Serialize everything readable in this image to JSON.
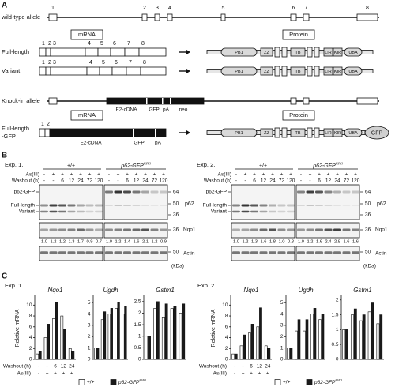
{
  "panel_a": {
    "label": "A",
    "wild_type": {
      "label": "wild-type allele",
      "exons": [
        1,
        2,
        3,
        4,
        5,
        6,
        7,
        8
      ]
    },
    "mrna_header": "mRNA",
    "protein_header": "Protein",
    "full_length": {
      "label": "Full-length",
      "exons": [
        1,
        2,
        3,
        4,
        5,
        6,
        7,
        8
      ],
      "domains": [
        "PB1",
        "ZZ",
        "TB",
        "LIR",
        "KIR",
        "UBA"
      ]
    },
    "variant": {
      "label": "Variant",
      "exons": [
        1,
        2,
        3,
        4,
        5,
        6,
        7,
        8
      ],
      "domains": [
        "PB1",
        "ZZ",
        "TB",
        "LIR",
        "KIR",
        "UBA"
      ]
    },
    "knock_in": {
      "label": "Knock-in allele",
      "parts": [
        "E2-cDNA",
        "GFP",
        "pA",
        "neo"
      ]
    },
    "mrna_header_2": "mRNA",
    "protein_header_2": "Protein",
    "full_length_gfp": {
      "label": [
        "Full-length",
        "-GFP"
      ],
      "exons": [
        1,
        2
      ],
      "parts": [
        "E2-cDNA",
        "GFP",
        "pA"
      ],
      "domains": [
        "PB1",
        "ZZ",
        "TB",
        "LIR",
        "KIR",
        "UBA",
        "GFP"
      ]
    }
  },
  "panel_b": {
    "label": "B",
    "experiments": [
      {
        "label": "Exp. 1.",
        "genotype_wt": "+/+",
        "genotype_ki": "p62-GFP",
        "genotype_ki_sup": "KI/KI",
        "as_label": "As(III)",
        "washout_label": "Washout (h)",
        "lanes": [
          {
            "as": [
              "-",
              "+",
              "+",
              "+",
              "+",
              "+",
              "+"
            ],
            "washout": [
              "-",
              "-",
              "6",
              "12",
              "24",
              "72",
              "120"
            ]
          },
          {
            "as": [
              "-",
              "+",
              "+",
              "+",
              "+",
              "+",
              "+"
            ],
            "washout": [
              "-",
              "-",
              "6",
              "12",
              "24",
              "72",
              "120"
            ]
          }
        ],
        "band_labels": [
          "p62-GFP",
          "Full-length",
          "Variant"
        ],
        "p62_markers": [
          64,
          50,
          36
        ],
        "p62_label": "p62",
        "nqo1_marker": 36,
        "nqo1_label": "Nqo1",
        "nqo1_ratio": [
          [
            "1.0",
            "1.2",
            "1.2",
            "1.3",
            "1.7",
            "0.9",
            "0.7"
          ],
          [
            "1.0",
            "1.2",
            "1.4",
            "1.6",
            "2.1",
            "1.2",
            "0.9"
          ]
        ],
        "actin_marker": 50,
        "actin_label": "Actin",
        "kda": "(kDa)"
      },
      {
        "label": "Exp. 2.",
        "genotype_wt": "+/+",
        "genotype_ki": "p62-GFP",
        "genotype_ki_sup": "KI/KI",
        "as_label": "As(III)",
        "washout_label": "Washout (h)",
        "lanes": [
          {
            "as": [
              "-",
              "+",
              "+",
              "+",
              "+",
              "+",
              "+"
            ],
            "washout": [
              "-",
              "-",
              "6",
              "12",
              "24",
              "72",
              "120"
            ]
          },
          {
            "as": [
              "-",
              "+",
              "+",
              "+",
              "+",
              "+",
              "+"
            ],
            "washout": [
              "-",
              "-",
              "6",
              "12",
              "24",
              "72",
              "120"
            ]
          }
        ],
        "band_labels": [
          "p62-GFP",
          "Full-length",
          "Variant"
        ],
        "p62_markers": [
          64,
          50,
          36
        ],
        "p62_label": "p62",
        "nqo1_marker": 36,
        "nqo1_label": "Nqo1",
        "nqo1_ratio": [
          [
            "1.0",
            "1.2",
            "1.3",
            "1.6",
            "1.8",
            "1.0",
            "0.8"
          ],
          [
            "1.0",
            "1.2",
            "1.6",
            "2.4",
            "2.8",
            "1.6",
            "1.6"
          ]
        ],
        "actin_marker": 50,
        "actin_label": "Actin",
        "kda": "(kDa)"
      }
    ]
  },
  "panel_c": {
    "label": "C",
    "experiments": [
      {
        "label": "Exp. 1.",
        "washout_label": "Washout (h)",
        "as_label": "As(III)",
        "as": [
          "-",
          "+",
          "+",
          "+",
          "+"
        ]
      },
      {
        "label": "Exp. 2.",
        "washout_label": "Washout (h)",
        "as_label": "As(III)",
        "as": [
          "-",
          "+",
          "+",
          "+",
          "+"
        ]
      }
    ]
  },
  "chart_data": [
    {
      "type": "bar",
      "title": "Nqo1",
      "ylabel": "Relative mRNA",
      "categories": [
        "-",
        "-",
        "6",
        "12",
        "24"
      ],
      "series": [
        {
          "name": "+/+",
          "color": "#ffffff",
          "values": [
            1,
            4,
            7.5,
            8,
            2
          ]
        },
        {
          "name": "p62-GFP",
          "name_sup": "KI/KI",
          "color": "#1a1a1a",
          "values": [
            1.5,
            6.5,
            10.5,
            5.5,
            1.5
          ]
        }
      ],
      "ylim": [
        0,
        11.5
      ],
      "yticks": [
        0,
        2,
        4,
        6,
        8,
        10
      ]
    },
    {
      "type": "bar",
      "title": "Ugdh",
      "categories": [
        null,
        null,
        null,
        null,
        null
      ],
      "series": [
        {
          "color": "#ffffff",
          "values": [
            1,
            3.5,
            4,
            4.5,
            4
          ]
        },
        {
          "color": "#1a1a1a",
          "values": [
            1,
            4.2,
            4.5,
            5,
            4.7
          ]
        }
      ],
      "ylim": [
        0,
        5.5
      ],
      "yticks": [
        0,
        1,
        2,
        3,
        4,
        5
      ]
    },
    {
      "type": "bar",
      "title": "Gstm1",
      "categories": [
        null,
        null,
        null,
        null,
        null
      ],
      "series": [
        {
          "color": "#ffffff",
          "values": [
            1,
            2.2,
            1.8,
            2.2,
            2
          ]
        },
        {
          "color": "#1a1a1a",
          "values": [
            1,
            2.5,
            2.4,
            2.3,
            2.4
          ]
        }
      ],
      "ylim": [
        0,
        2.7
      ],
      "yticks": [
        0,
        0.5,
        1,
        1.5,
        2,
        2.5
      ]
    },
    {
      "type": "bar",
      "title": "Nqo1",
      "ylabel": "Relative mRNA",
      "categories": [
        "-",
        "-",
        "6",
        "12",
        "24"
      ],
      "series": [
        {
          "name": "+/+",
          "color": "#ffffff",
          "values": [
            1,
            2.5,
            5,
            6,
            2.5
          ]
        },
        {
          "name": "p62-GFP",
          "name_sup": "KI/KI",
          "color": "#1a1a1a",
          "values": [
            1,
            4.5,
            6.5,
            9.5,
            2
          ]
        }
      ],
      "ylim": [
        0,
        11.5
      ],
      "yticks": [
        0,
        2,
        4,
        6,
        8,
        10
      ]
    },
    {
      "type": "bar",
      "title": "Ugdh",
      "categories": [
        null,
        null,
        null,
        null,
        null
      ],
      "series": [
        {
          "color": "#ffffff",
          "values": [
            1,
            2.5,
            2.5,
            4,
            3.5
          ]
        },
        {
          "color": "#1a1a1a",
          "values": [
            1,
            3.5,
            3.5,
            4.5,
            4
          ]
        }
      ],
      "ylim": [
        0,
        5.5
      ],
      "yticks": [
        0,
        1,
        2,
        3,
        4,
        5
      ]
    },
    {
      "type": "bar",
      "title": "Gstm1",
      "categories": [
        null,
        null,
        null,
        null,
        null
      ],
      "series": [
        {
          "color": "#ffffff",
          "values": [
            1,
            1.5,
            1.3,
            1.6,
            1.2
          ]
        },
        {
          "color": "#1a1a1a",
          "values": [
            1,
            1.7,
            1.5,
            1.9,
            1.5
          ]
        }
      ],
      "ylim": [
        0,
        2.1
      ],
      "yticks": [
        0,
        0.5,
        1,
        1.5,
        2
      ]
    }
  ]
}
